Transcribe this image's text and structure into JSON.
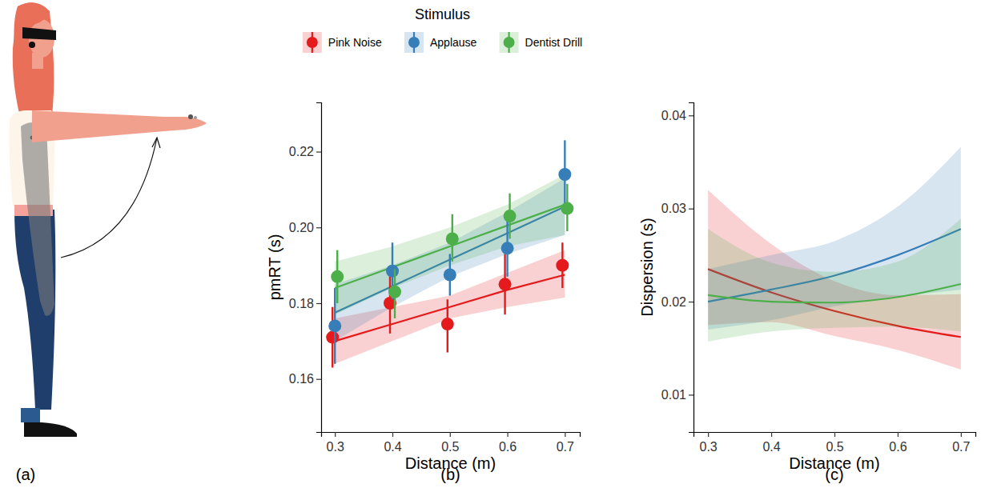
{
  "illustration": {
    "panel": "(a)"
  },
  "chart_data": [
    {
      "type": "scatter",
      "panel": "(b)",
      "x_label": "Distance (m)",
      "y_label": "pmRT (s)",
      "legend_title": "Stimulus",
      "legend": "top",
      "grid": false,
      "marker": "circle",
      "x": [
        0.3,
        0.4,
        0.5,
        0.6,
        0.7
      ],
      "xlim": [
        0.276,
        0.726
      ],
      "xticks": [
        0.3,
        0.4,
        0.5,
        0.6,
        0.7
      ],
      "ylim": [
        0.146,
        0.233
      ],
      "yticks": [
        0.16,
        0.18,
        {
          "value": 0.2,
          "label": "0.20"
        },
        0.22
      ],
      "series": [
        {
          "name": "Pink Noise",
          "color": "#e41a1c",
          "values": [
            0.171,
            0.18,
            0.1745,
            0.185,
            0.19
          ],
          "low": [
            0.163,
            0.172,
            0.167,
            0.177,
            0.184
          ],
          "high": [
            0.179,
            0.188,
            0.181,
            0.193,
            0.196
          ],
          "fit": [
            0.17,
            0.1745,
            0.179,
            0.1835,
            0.1875
          ],
          "fit_lower": [
            0.164,
            0.17,
            0.176,
            0.179,
            0.1815
          ],
          "fit_upper": [
            0.176,
            0.179,
            0.182,
            0.188,
            0.194
          ]
        },
        {
          "name": "Applause",
          "color": "#377eb8",
          "values": [
            0.174,
            0.1885,
            0.1875,
            0.1945,
            0.214
          ],
          "low": [
            0.164,
            0.181,
            0.182,
            0.187,
            0.205
          ],
          "high": [
            0.184,
            0.196,
            0.193,
            0.202,
            0.223
          ],
          "fit": [
            0.1775,
            0.1845,
            0.1915,
            0.1985,
            0.2055
          ],
          "fit_lower": [
            0.17,
            0.179,
            0.187,
            0.193,
            0.198
          ],
          "fit_upper": [
            0.185,
            0.19,
            0.196,
            0.204,
            0.213
          ]
        },
        {
          "name": "Dentist Drill",
          "color": "#4daf4a",
          "values": [
            0.187,
            0.183,
            0.197,
            0.203,
            0.205
          ],
          "low": [
            0.18,
            0.176,
            0.191,
            0.197,
            0.199
          ],
          "high": [
            0.194,
            0.189,
            0.2035,
            0.209,
            0.2115
          ],
          "fit": [
            0.184,
            0.1895,
            0.195,
            0.2005,
            0.206
          ],
          "fit_lower": [
            0.177,
            0.184,
            0.19,
            0.195,
            0.198
          ],
          "fit_upper": [
            0.191,
            0.195,
            0.2,
            0.206,
            0.214
          ]
        }
      ]
    },
    {
      "type": "line",
      "panel": "(c)",
      "x_label": "Distance (m)",
      "y_label": "Dispersion (s)",
      "grid": false,
      "x": [
        0.3,
        0.4,
        0.5,
        0.6,
        0.7
      ],
      "xlim": [
        0.277,
        0.723
      ],
      "xticks": [
        0.3,
        0.4,
        0.5,
        0.6,
        0.7
      ],
      "ylim": [
        0.006,
        0.0414
      ],
      "yticks": [
        0.01,
        0.02,
        0.03,
        0.04
      ],
      "series": [
        {
          "color": "#e41a1c",
          "values": [
            0.0235,
            0.021,
            0.019,
            0.0174,
            0.0162
          ],
          "lower": [
            0.0175,
            0.0178,
            0.0163,
            0.0148,
            0.0127
          ],
          "upper": [
            0.032,
            0.0262,
            0.0222,
            0.0207,
            0.0208
          ]
        },
        {
          "color": "#377eb8",
          "values": [
            0.02,
            0.0213,
            0.0228,
            0.025,
            0.0278
          ],
          "lower": [
            0.017,
            0.018,
            0.0195,
            0.0205,
            0.0213
          ],
          "upper": [
            0.0235,
            0.025,
            0.0265,
            0.0302,
            0.0366
          ]
        },
        {
          "color": "#4daf4a",
          "values": [
            0.0207,
            0.02,
            0.0199,
            0.0205,
            0.0219
          ],
          "lower": [
            0.0157,
            0.0168,
            0.0172,
            0.0173,
            0.0168
          ],
          "upper": [
            0.0278,
            0.0242,
            0.0232,
            0.0243,
            0.0289
          ]
        }
      ]
    }
  ]
}
